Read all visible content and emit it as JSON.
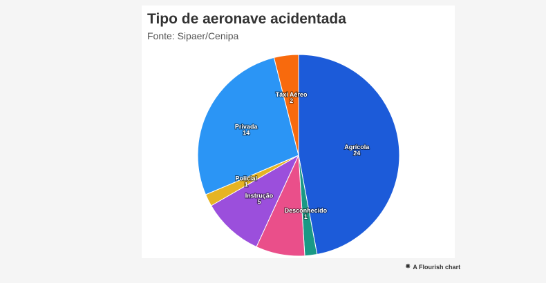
{
  "header": {
    "title": "Tipo de aeronave acidentada",
    "subtitle": "Fonte: Sipaer/Cenipa"
  },
  "footer": {
    "credit": "A Flourish chart",
    "credit_icon": "flourish-star-icon"
  },
  "chart_data": {
    "type": "pie",
    "title": "Tipo de aeronave acidentada",
    "subtitle": "Fonte: Sipaer/Cenipa",
    "start_angle_deg": 0,
    "direction": "clockwise",
    "slices": [
      {
        "label": "Agrícola",
        "value": 24,
        "color": "#1c5bd9"
      },
      {
        "label": "Desconhecido",
        "value": 1,
        "color": "#1a9985"
      },
      {
        "label": "",
        "value": 4,
        "color": "#ea4f8a"
      },
      {
        "label": "Instrução",
        "value": 5,
        "color": "#9b4fdc"
      },
      {
        "label": "Policial",
        "value": 1,
        "color": "#e6b423"
      },
      {
        "label": "Privada",
        "value": 14,
        "color": "#2b95f5"
      },
      {
        "label": "Táxi Aéreo",
        "value": 2,
        "color": "#f86a0d"
      }
    ]
  }
}
